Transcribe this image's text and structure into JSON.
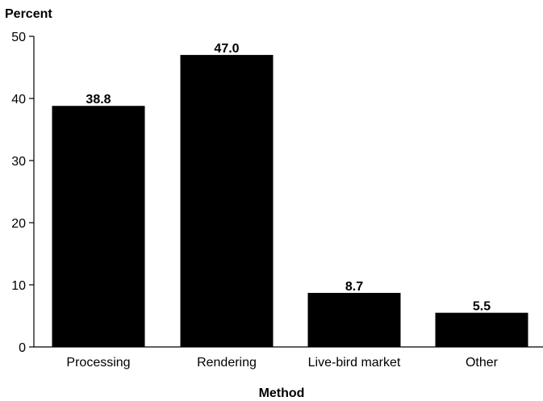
{
  "chart_data": {
    "type": "bar",
    "categories": [
      "Processing",
      "Rendering",
      "Live-bird market",
      "Other"
    ],
    "values": [
      38.8,
      47.0,
      8.7,
      5.5
    ],
    "value_labels": [
      "38.8",
      "47.0",
      "8.7",
      "5.5"
    ],
    "xlabel": "Method",
    "ylabel": "Percent",
    "ylim": [
      0,
      50
    ],
    "yticks": [
      0,
      10,
      20,
      30,
      40,
      50
    ],
    "grid": false,
    "legend": "none",
    "bar_color": "#000000"
  }
}
